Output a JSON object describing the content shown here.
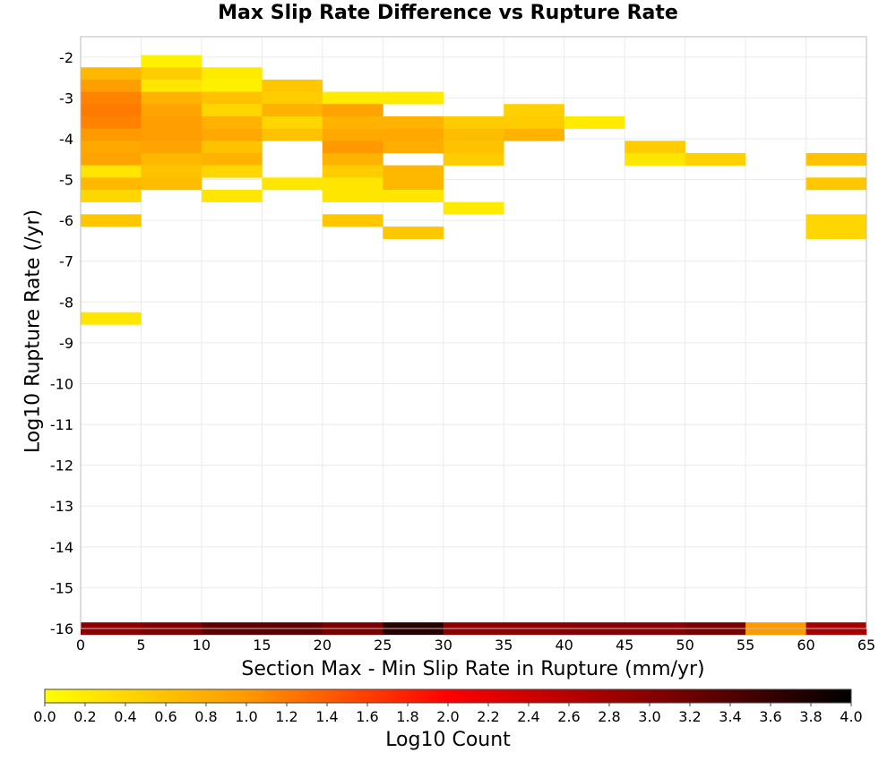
{
  "chart_data": {
    "type": "heatmap",
    "title": "Max Slip Rate Difference vs Rupture Rate",
    "xlabel": "Section Max - Min Slip Rate in Rupture (mm/yr)",
    "ylabel": "Log10 Rupture Rate (/yr)",
    "xlim": [
      0,
      65
    ],
    "ylim": [
      -16,
      -1.5
    ],
    "x_bin_width": 5,
    "y_bin_height": 0.3,
    "x_ticks": [
      "0",
      "5",
      "10",
      "15",
      "20",
      "25",
      "30",
      "35",
      "40",
      "45",
      "50",
      "55",
      "60",
      "65"
    ],
    "x_tick_values": [
      0,
      5,
      10,
      15,
      20,
      25,
      30,
      35,
      40,
      45,
      50,
      55,
      60,
      65
    ],
    "y_ticks": [
      "-2",
      "-3",
      "-4",
      "-5",
      "-6",
      "-7",
      "-8",
      "-9",
      "-10",
      "-11",
      "-12",
      "-13",
      "-14",
      "-15",
      "-16"
    ],
    "y_tick_values": [
      -2,
      -3,
      -4,
      -5,
      -6,
      -7,
      -8,
      -9,
      -10,
      -11,
      -12,
      -13,
      -14,
      -15,
      -16
    ],
    "grid": true,
    "colorbar": {
      "label": "Log10 Count",
      "range": [
        0,
        4
      ],
      "ticks": [
        "0.0",
        "0.2",
        "0.4",
        "0.6",
        "0.8",
        "1.0",
        "1.2",
        "1.4",
        "1.6",
        "1.8",
        "2.0",
        "2.2",
        "2.4",
        "2.6",
        "2.8",
        "3.0",
        "3.2",
        "3.4",
        "3.6",
        "3.8",
        "4.0"
      ],
      "stops": [
        "#ffff00",
        "#ff9900",
        "#ff0000",
        "#880000",
        "#000000"
      ]
    },
    "cells": [
      {
        "x": 0,
        "y": -2.4,
        "v": 0.7
      },
      {
        "x": 0,
        "y": -2.7,
        "v": 0.95
      },
      {
        "x": 0,
        "y": -3.0,
        "v": 1.15
      },
      {
        "x": 0,
        "y": -3.3,
        "v": 1.2
      },
      {
        "x": 0,
        "y": -3.6,
        "v": 1.15
      },
      {
        "x": 0,
        "y": -3.9,
        "v": 1.0
      },
      {
        "x": 0,
        "y": -4.2,
        "v": 0.85
      },
      {
        "x": 0,
        "y": -4.5,
        "v": 0.9
      },
      {
        "x": 0,
        "y": -4.8,
        "v": 0.25
      },
      {
        "x": 0,
        "y": -5.1,
        "v": 0.7
      },
      {
        "x": 0,
        "y": -5.4,
        "v": 0.4
      },
      {
        "x": 0,
        "y": -6.0,
        "v": 0.55
      },
      {
        "x": 0,
        "y": -8.4,
        "v": 0.25
      },
      {
        "x": 5,
        "y": -2.1,
        "v": 0.15
      },
      {
        "x": 5,
        "y": -2.4,
        "v": 0.5
      },
      {
        "x": 5,
        "y": -2.7,
        "v": 0.25
      },
      {
        "x": 5,
        "y": -3.0,
        "v": 0.75
      },
      {
        "x": 5,
        "y": -3.3,
        "v": 0.9
      },
      {
        "x": 5,
        "y": -3.6,
        "v": 0.95
      },
      {
        "x": 5,
        "y": -3.9,
        "v": 0.95
      },
      {
        "x": 5,
        "y": -4.2,
        "v": 0.9
      },
      {
        "x": 5,
        "y": -4.5,
        "v": 0.7
      },
      {
        "x": 5,
        "y": -4.8,
        "v": 0.6
      },
      {
        "x": 5,
        "y": -5.1,
        "v": 0.65
      },
      {
        "x": 10,
        "y": -2.4,
        "v": 0.2
      },
      {
        "x": 10,
        "y": -2.7,
        "v": 0.15
      },
      {
        "x": 10,
        "y": -3.0,
        "v": 0.6
      },
      {
        "x": 10,
        "y": -3.3,
        "v": 0.4
      },
      {
        "x": 10,
        "y": -3.6,
        "v": 0.75
      },
      {
        "x": 10,
        "y": -3.9,
        "v": 0.85
      },
      {
        "x": 10,
        "y": -4.2,
        "v": 0.6
      },
      {
        "x": 10,
        "y": -4.5,
        "v": 0.75
      },
      {
        "x": 10,
        "y": -4.8,
        "v": 0.4
      },
      {
        "x": 10,
        "y": -5.4,
        "v": 0.25
      },
      {
        "x": 15,
        "y": -2.7,
        "v": 0.55
      },
      {
        "x": 15,
        "y": -3.0,
        "v": 0.5
      },
      {
        "x": 15,
        "y": -3.3,
        "v": 0.75
      },
      {
        "x": 15,
        "y": -3.6,
        "v": 0.4
      },
      {
        "x": 15,
        "y": -3.9,
        "v": 0.6
      },
      {
        "x": 15,
        "y": -5.1,
        "v": 0.25
      },
      {
        "x": 20,
        "y": -3.0,
        "v": 0.2
      },
      {
        "x": 20,
        "y": -3.3,
        "v": 0.9
      },
      {
        "x": 20,
        "y": -3.6,
        "v": 0.75
      },
      {
        "x": 20,
        "y": -3.9,
        "v": 0.85
      },
      {
        "x": 20,
        "y": -4.2,
        "v": 1.0
      },
      {
        "x": 20,
        "y": -4.5,
        "v": 0.75
      },
      {
        "x": 20,
        "y": -4.8,
        "v": 0.5
      },
      {
        "x": 20,
        "y": -5.1,
        "v": 0.25
      },
      {
        "x": 20,
        "y": -5.4,
        "v": 0.25
      },
      {
        "x": 20,
        "y": -6.0,
        "v": 0.55
      },
      {
        "x": 25,
        "y": -3.0,
        "v": 0.2
      },
      {
        "x": 25,
        "y": -3.6,
        "v": 0.75
      },
      {
        "x": 25,
        "y": -3.9,
        "v": 0.85
      },
      {
        "x": 25,
        "y": -4.2,
        "v": 0.8
      },
      {
        "x": 25,
        "y": -4.8,
        "v": 0.7
      },
      {
        "x": 25,
        "y": -5.1,
        "v": 0.7
      },
      {
        "x": 25,
        "y": -5.4,
        "v": 0.25
      },
      {
        "x": 25,
        "y": -6.3,
        "v": 0.55
      },
      {
        "x": 30,
        "y": -3.6,
        "v": 0.5
      },
      {
        "x": 30,
        "y": -3.9,
        "v": 0.65
      },
      {
        "x": 30,
        "y": -4.2,
        "v": 0.6
      },
      {
        "x": 30,
        "y": -4.5,
        "v": 0.5
      },
      {
        "x": 30,
        "y": -5.7,
        "v": 0.2
      },
      {
        "x": 35,
        "y": -3.3,
        "v": 0.45
      },
      {
        "x": 35,
        "y": -3.6,
        "v": 0.5
      },
      {
        "x": 35,
        "y": -3.9,
        "v": 0.75
      },
      {
        "x": 40,
        "y": -3.6,
        "v": 0.2
      },
      {
        "x": 45,
        "y": -4.2,
        "v": 0.5
      },
      {
        "x": 45,
        "y": -4.5,
        "v": 0.25
      },
      {
        "x": 50,
        "y": -4.5,
        "v": 0.45
      },
      {
        "x": 60,
        "y": -4.5,
        "v": 0.6
      },
      {
        "x": 60,
        "y": -5.1,
        "v": 0.55
      },
      {
        "x": 60,
        "y": -6.0,
        "v": 0.4
      },
      {
        "x": 60,
        "y": -6.3,
        "v": 0.4
      },
      {
        "x": 0,
        "y": -16.0,
        "v": 2.95
      },
      {
        "x": 5,
        "y": -16.0,
        "v": 3.05
      },
      {
        "x": 10,
        "y": -16.0,
        "v": 3.3
      },
      {
        "x": 15,
        "y": -16.0,
        "v": 3.3
      },
      {
        "x": 20,
        "y": -16.0,
        "v": 3.1
      },
      {
        "x": 25,
        "y": -16.0,
        "v": 3.7
      },
      {
        "x": 30,
        "y": -16.0,
        "v": 2.95
      },
      {
        "x": 35,
        "y": -16.0,
        "v": 2.95
      },
      {
        "x": 40,
        "y": -16.0,
        "v": 3.0
      },
      {
        "x": 45,
        "y": -16.0,
        "v": 3.0
      },
      {
        "x": 50,
        "y": -16.0,
        "v": 3.1
      },
      {
        "x": 55,
        "y": -16.0,
        "v": 1.0
      },
      {
        "x": 60,
        "y": -16.0,
        "v": 2.75
      }
    ]
  }
}
